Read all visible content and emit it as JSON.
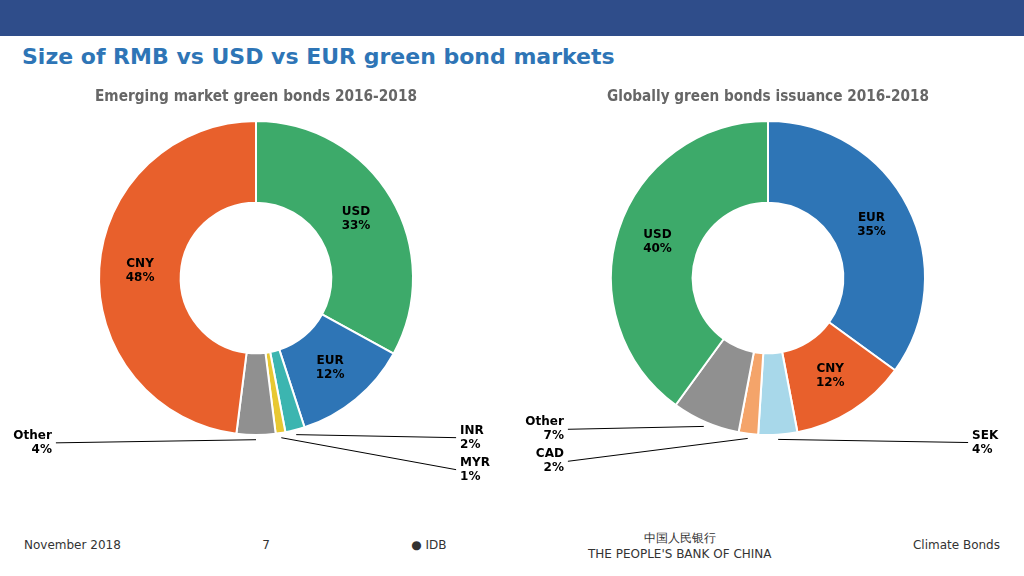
{
  "title": "Size of RMB vs USD vs EUR green bond markets",
  "annotations": [
    "November 2018",
    "7",
    "● IDB",
    "中国人民银行\nTHE PEOPLE'S BANK OF CHINA",
    "Climate Bonds"
  ],
  "chart_data": [
    {
      "type": "doughnut",
      "title": "Emerging market green bonds 2016-2018",
      "categories": [
        "USD",
        "EUR",
        "INR",
        "MYR",
        "Other",
        "CNY"
      ],
      "values": [
        33,
        12,
        2,
        1,
        4,
        48
      ],
      "value_labels": [
        "33%",
        "12%",
        "2%",
        "1%",
        "4%",
        "48%"
      ],
      "colors": [
        "#3DAA6A",
        "#2E75B6",
        "#3CB5B0",
        "#E8C832",
        "#909090",
        "#E8602C"
      ],
      "data_labels": true
    },
    {
      "type": "doughnut",
      "title": "Globally green bonds issuance 2016-2018",
      "categories": [
        "EUR",
        "CNY",
        "SEK",
        "CAD",
        "Other",
        "USD"
      ],
      "values": [
        35,
        12,
        4,
        2,
        7,
        40
      ],
      "value_labels": [
        "35%",
        "12%",
        "4%",
        "2%",
        "7%",
        "40%"
      ],
      "colors": [
        "#2E75B6",
        "#E8602C",
        "#A8D8EA",
        "#F4A46A",
        "#909090",
        "#3DAA6A"
      ],
      "data_labels": true
    }
  ]
}
